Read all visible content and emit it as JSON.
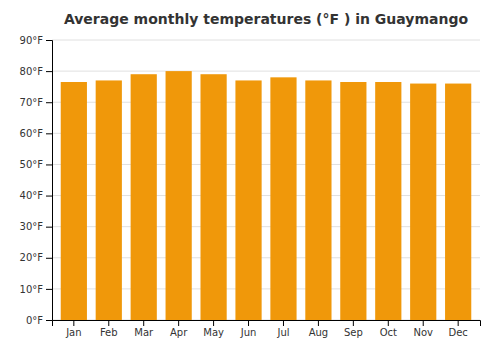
{
  "chart_data": {
    "type": "bar",
    "title": "Average monthly temperatures (°F ) in Guaymango",
    "categories": [
      "Jan",
      "Feb",
      "Mar",
      "Apr",
      "May",
      "Jun",
      "Jul",
      "Aug",
      "Sep",
      "Oct",
      "Nov",
      "Dec"
    ],
    "values": [
      76.5,
      77.0,
      79.0,
      80.0,
      79.0,
      77.0,
      78.0,
      77.0,
      76.5,
      76.5,
      76.0,
      76.0
    ],
    "color": "#F0980A",
    "ylim": [
      0,
      90
    ],
    "yticks": [
      {
        "value": 0,
        "label": "0°F"
      },
      {
        "value": 10,
        "label": "10°F"
      },
      {
        "value": 20,
        "label": "20°F"
      },
      {
        "value": 30,
        "label": "30°F"
      },
      {
        "value": 40,
        "label": "40°F"
      },
      {
        "value": 50,
        "label": "50°F"
      },
      {
        "value": 60,
        "label": "60°F"
      },
      {
        "value": 70,
        "label": "70°F"
      },
      {
        "value": 80,
        "label": "80°F"
      },
      {
        "value": 90,
        "label": "90°F"
      }
    ],
    "grid": true
  }
}
